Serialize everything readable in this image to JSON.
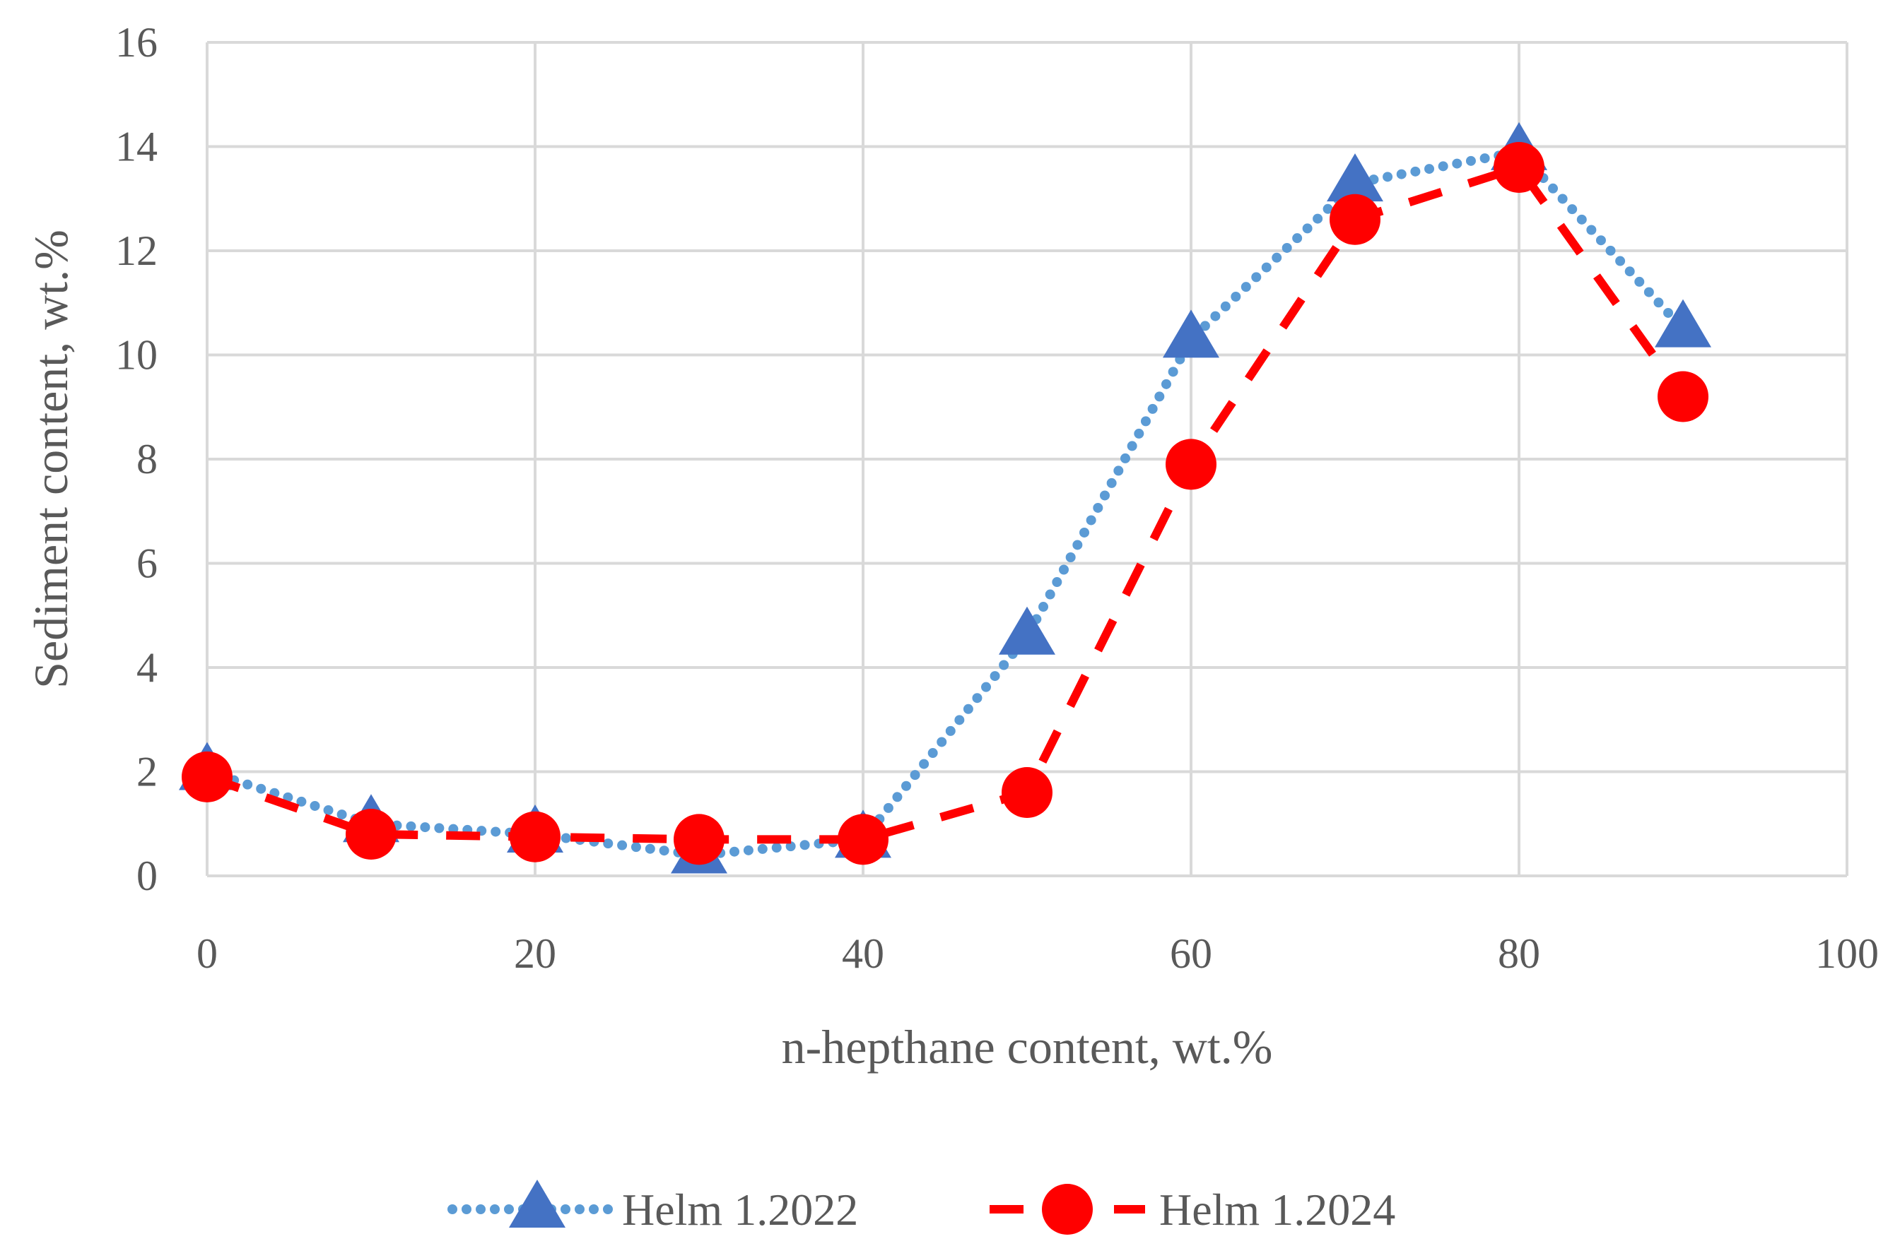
{
  "chart_data": {
    "type": "line",
    "title": "",
    "xlabel": "n-hepthane content, wt.%",
    "ylabel": "Sediment content, wt.%",
    "xlim": [
      0,
      100
    ],
    "ylim": [
      0,
      16
    ],
    "x_ticks": [
      0,
      20,
      40,
      60,
      80,
      100
    ],
    "y_ticks": [
      0,
      2,
      4,
      6,
      8,
      10,
      12,
      14,
      16
    ],
    "grid": true,
    "legend_position": "bottom",
    "series": [
      {
        "name": "Helm 1.2022",
        "color": "#4472C4",
        "line_color": "#5B9BD5",
        "line_style": "dotted",
        "marker": "triangle",
        "x": [
          0,
          10,
          20,
          30,
          40,
          50,
          60,
          70,
          80,
          90
        ],
        "y": [
          2.0,
          1.0,
          0.8,
          0.4,
          0.7,
          4.6,
          10.3,
          13.3,
          13.9,
          10.5
        ]
      },
      {
        "name": "Helm 1.2024",
        "color": "#FF0000",
        "line_color": "#FF0000",
        "line_style": "dashed",
        "marker": "circle",
        "x": [
          0,
          10,
          20,
          30,
          40,
          50,
          60,
          70,
          80,
          90
        ],
        "y": [
          1.9,
          0.8,
          0.75,
          0.7,
          0.7,
          1.6,
          7.9,
          12.6,
          13.6,
          9.2
        ]
      }
    ]
  }
}
